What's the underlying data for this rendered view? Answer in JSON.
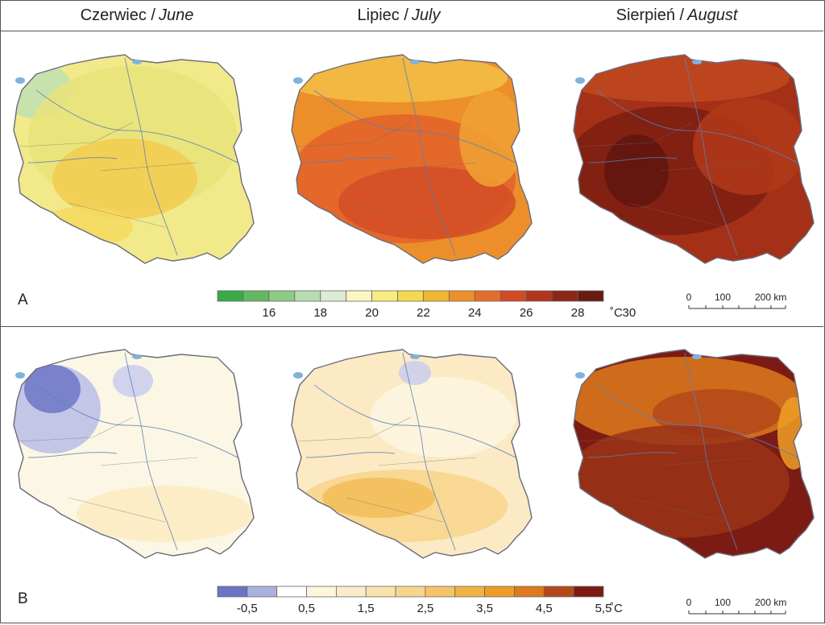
{
  "headers": {
    "june": {
      "pl": "Czerwiec /",
      "en": "June"
    },
    "july": {
      "pl": "Lipiec /",
      "en": "July"
    },
    "august": {
      "pl": "Sierpień /",
      "en": "August"
    }
  },
  "panels": {
    "a": "A",
    "b": "B"
  },
  "legend_a": {
    "unit": "˚C",
    "colors": [
      "#3aaa45",
      "#64b863",
      "#8fcb86",
      "#b8dcb0",
      "#dcecd4",
      "#fbf6c2",
      "#f6ec80",
      "#f3d94f",
      "#f1b62f",
      "#ec9129",
      "#e56d2b",
      "#d24b26",
      "#b3341d",
      "#8d2616",
      "#6a1a12"
    ],
    "labels": [
      "16",
      "18",
      "20",
      "22",
      "24",
      "26",
      "28",
      "30"
    ]
  },
  "legend_b": {
    "unit": "˚C",
    "colors": [
      "#6b74c4",
      "#a9b1df",
      "#ffffff",
      "#fdf6dc",
      "#faeccb",
      "#f9e2ae",
      "#f7d58c",
      "#f5c46a",
      "#f1b244",
      "#ee9d26",
      "#dd7a1e",
      "#b5481a",
      "#7e1a14"
    ],
    "labels": [
      "-0,5",
      "0,5",
      "1,5",
      "2,5",
      "3,5",
      "4,5",
      "5,5"
    ]
  },
  "scalebar": {
    "labels": [
      "0",
      "100",
      "200 km"
    ]
  },
  "maps": {
    "a_june": {
      "base": "#f2e98a",
      "zones": [
        "#bfe0b2",
        "#e9e37a",
        "#f3cb4e",
        "#f5d95e"
      ]
    },
    "a_july": {
      "base": "#ec8f2a",
      "zones": [
        "#f4c046",
        "#e2622a",
        "#d44d24",
        "#f0a234"
      ]
    },
    "a_august": {
      "base": "#a43018",
      "zones": [
        "#c2491f",
        "#7c1d12",
        "#60150e",
        "#b23a1a"
      ]
    },
    "b_june": {
      "base": "#fcf7e4",
      "zones": [
        "#b9bde6",
        "#6f76c7",
        "#fbebc2",
        "#c9cdee"
      ]
    },
    "b_july": {
      "base": "#fbeac4",
      "zones": [
        "#f7d58a",
        "#f3bd58",
        "#fdf6e2",
        "#c9cdee"
      ]
    },
    "b_august": {
      "base": "#7c1b13",
      "zones": [
        "#dd7a1e",
        "#b5481a",
        "#ee9d26",
        "#9a3316"
      ]
    }
  }
}
